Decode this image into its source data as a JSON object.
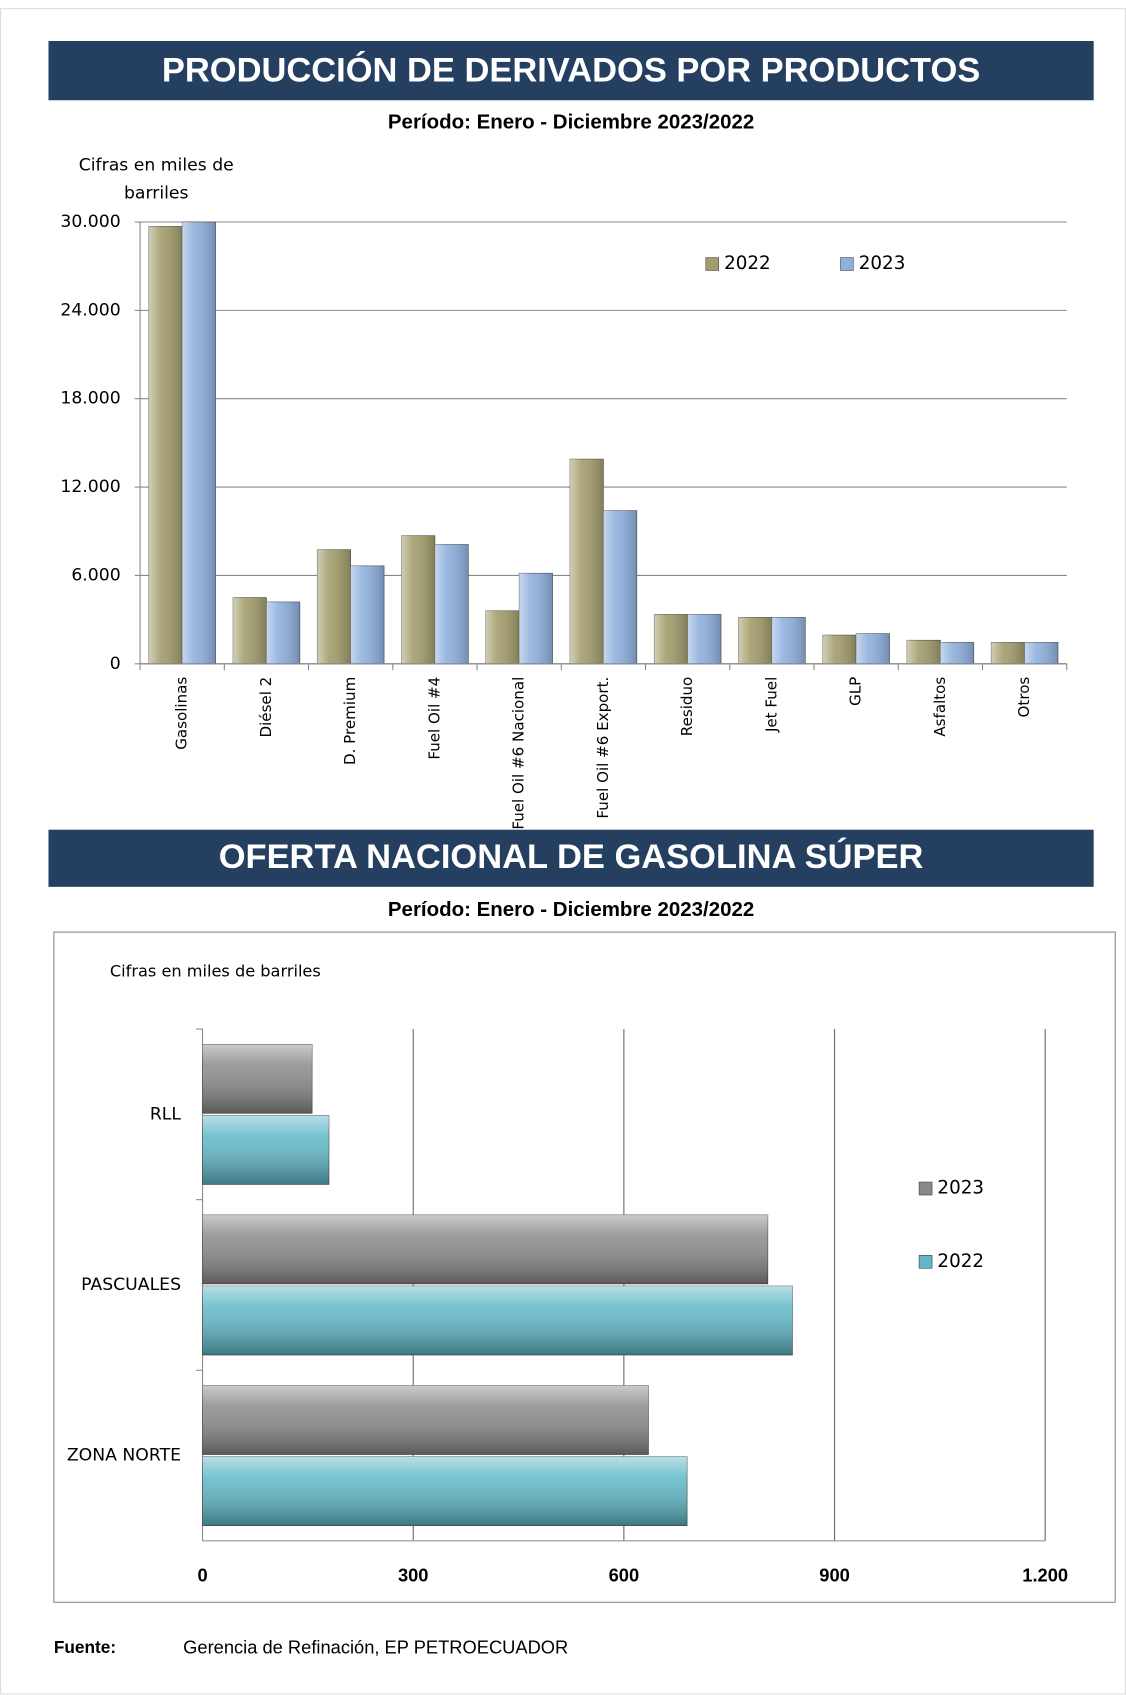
{
  "chart_data": [
    {
      "type": "bar",
      "title": "PRODUCCIÓN DE DERIVADOS POR PRODUCTOS",
      "subtitle": "Período: Enero - Diciembre 2023/2022",
      "y_label": "Cifras en miles de barriles",
      "categories": [
        "Gasolinas",
        "Diésel 2",
        "D. Premium",
        "Fuel Oil #4",
        "Fuel Oil #6 Nacional",
        "Fuel Oil #6 Export.",
        "Residuo",
        "Jet Fuel",
        "GLP",
        "Asfaltos",
        "Otros"
      ],
      "series": [
        {
          "name": "2022",
          "color": "#a39d6c",
          "values": [
            29700,
            4500,
            7750,
            8700,
            3600,
            13900,
            3350,
            3150,
            1950,
            1600,
            1450
          ]
        },
        {
          "name": "2023",
          "color": "#8fb0de",
          "values": [
            30000,
            4200,
            6650,
            8100,
            6150,
            10400,
            3350,
            3150,
            2050,
            1450,
            1450
          ]
        }
      ],
      "ylim": [
        0,
        30000
      ],
      "yticks": [
        0,
        {
          "value": 6000,
          "label": "6.000"
        },
        {
          "value": 12000,
          "label": "12.000"
        },
        {
          "value": 18000,
          "label": "18.000"
        },
        {
          "value": 24000,
          "label": "24.000"
        },
        {
          "value": 30000,
          "label": "30.000"
        }
      ],
      "grid": true,
      "legend": "top-right"
    },
    {
      "type": "hbar",
      "title": "OFERTA NACIONAL DE GASOLINA SÚPER",
      "subtitle": "Período: Enero -  Diciembre  2023/2022",
      "x_label": "Cifras en miles de barriles",
      "categories": [
        "RLL",
        "PASCUALES",
        "ZONA NORTE"
      ],
      "series": [
        {
          "name": "2023",
          "color": "#8a8a8a",
          "values": [
            156,
            805,
            635
          ]
        },
        {
          "name": "2022",
          "color": "#5fb8c8",
          "values": [
            180,
            840,
            690
          ]
        }
      ],
      "xlim": [
        0,
        1200
      ],
      "xticks": [
        0,
        300,
        600,
        900,
        {
          "value": 1200,
          "label": "1.200"
        }
      ],
      "grid": true,
      "legend": "right"
    }
  ],
  "source_label": "Fuente:",
  "source": "Gerencia de Refinación, EP PETROECUADOR"
}
